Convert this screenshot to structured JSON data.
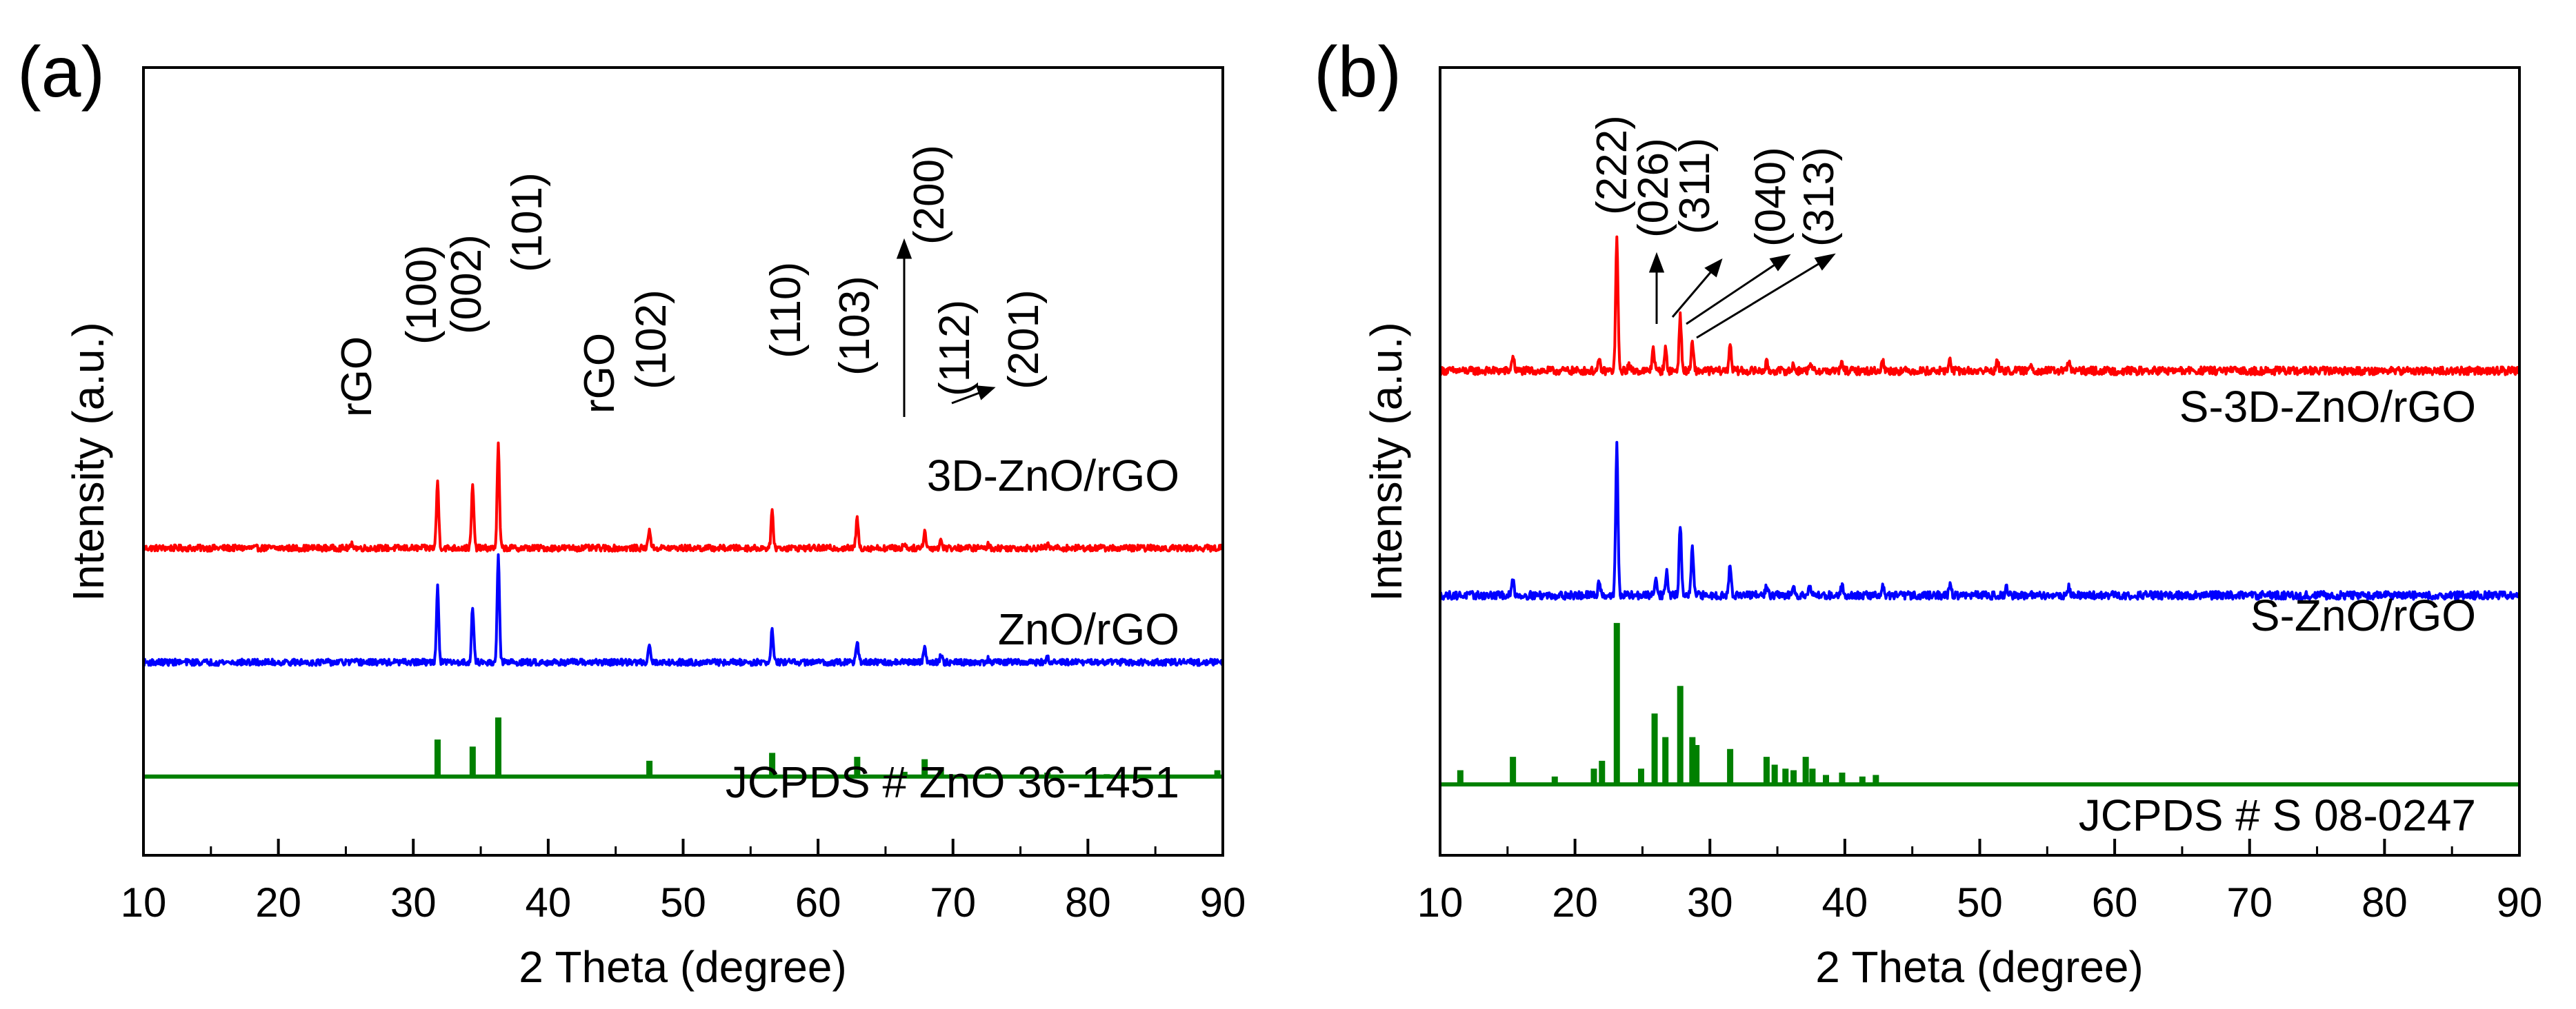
{
  "colors": {
    "red": "#ff0000",
    "blue": "#0000ff",
    "green": "#008000",
    "axis": "#000000"
  },
  "chart_data": [
    {
      "type": "line",
      "panel_label": "(a)",
      "xlabel": "2 Theta (degree)",
      "ylabel": "Intensity (a.u.)",
      "xlim": [
        10,
        90
      ],
      "xticks": [
        "10",
        "20",
        "30",
        "40",
        "50",
        "60",
        "70",
        "80",
        "90"
      ],
      "yticks_shown": false,
      "series": [
        {
          "name": "3D-ZnO/rGO",
          "color": "#ff0000",
          "style": "pattern",
          "baseline": 0.39,
          "noise": 0.004,
          "peaks": [
            [
              25.5,
              0.005
            ],
            [
              31.8,
              0.085
            ],
            [
              34.4,
              0.08
            ],
            [
              36.3,
              0.13
            ],
            [
              47.5,
              0.025
            ],
            [
              56.6,
              0.045
            ],
            [
              62.9,
              0.038
            ],
            [
              66.4,
              0.006
            ],
            [
              67.9,
              0.022
            ],
            [
              69.1,
              0.01
            ],
            [
              72.6,
              0.004
            ],
            [
              77.0,
              0.004
            ]
          ]
        },
        {
          "name": "ZnO/rGO",
          "color": "#0000ff",
          "style": "pattern",
          "baseline": 0.245,
          "noise": 0.004,
          "peaks": [
            [
              31.8,
              0.095
            ],
            [
              34.4,
              0.07
            ],
            [
              36.3,
              0.135
            ],
            [
              47.5,
              0.025
            ],
            [
              56.6,
              0.042
            ],
            [
              62.9,
              0.028
            ],
            [
              67.9,
              0.022
            ],
            [
              69.1,
              0.009
            ],
            [
              72.6,
              0.004
            ],
            [
              77.0,
              0.005
            ]
          ]
        },
        {
          "name": "JCPDS # ZnO 36-1451",
          "color": "#008000",
          "style": "sticks",
          "baseline": 0.1,
          "noise": 0,
          "peaks": [
            [
              31.8,
              0.047
            ],
            [
              34.4,
              0.038
            ],
            [
              36.3,
              0.075
            ],
            [
              47.5,
              0.02
            ],
            [
              56.6,
              0.03
            ],
            [
              62.9,
              0.025
            ],
            [
              66.4,
              0.006
            ],
            [
              67.9,
              0.022
            ],
            [
              69.1,
              0.012
            ],
            [
              72.6,
              0.004
            ],
            [
              77.0,
              0.005
            ],
            [
              81.4,
              0.003
            ],
            [
              89.6,
              0.008
            ]
          ]
        }
      ],
      "series_labels": [
        "3D-ZnO/rGO",
        "ZnO/rGO",
        "JCPDS # ZnO 36-1451"
      ],
      "annotations": [
        "rGO",
        "(100)",
        "(002)",
        "(101)",
        "rGO",
        "(102)",
        "(110)",
        "(103)",
        "(200)",
        "(112)",
        "(201)"
      ]
    },
    {
      "type": "line",
      "panel_label": "(b)",
      "xlabel": "2 Theta (degree)",
      "ylabel": "Intensity (a.u.)",
      "xlim": [
        10,
        90
      ],
      "xticks": [
        "10",
        "20",
        "30",
        "40",
        "50",
        "60",
        "70",
        "80",
        "90"
      ],
      "yticks_shown": false,
      "series": [
        {
          "name": "S-3D-ZnO/rGO",
          "color": "#ff0000",
          "style": "pattern",
          "baseline": 0.615,
          "noise": 0.005,
          "peaks": [
            [
              15.4,
              0.02
            ],
            [
              21.8,
              0.012
            ],
            [
              23.1,
              0.17
            ],
            [
              24.0,
              0.008
            ],
            [
              25.8,
              0.03
            ],
            [
              26.7,
              0.028
            ],
            [
              27.8,
              0.07
            ],
            [
              28.7,
              0.035
            ],
            [
              31.5,
              0.035
            ],
            [
              34.2,
              0.01
            ],
            [
              36.2,
              0.008
            ],
            [
              37.4,
              0.01
            ],
            [
              39.8,
              0.01
            ],
            [
              42.8,
              0.013
            ],
            [
              47.8,
              0.014
            ],
            [
              51.3,
              0.012
            ],
            [
              53.8,
              0.01
            ],
            [
              56.6,
              0.012
            ]
          ]
        },
        {
          "name": "S-ZnO/rGO",
          "color": "#0000ff",
          "style": "pattern",
          "baseline": 0.33,
          "noise": 0.005,
          "peaks": [
            [
              15.4,
              0.02
            ],
            [
              21.8,
              0.02
            ],
            [
              23.1,
              0.19
            ],
            [
              26.0,
              0.025
            ],
            [
              26.8,
              0.03
            ],
            [
              27.8,
              0.09
            ],
            [
              28.7,
              0.06
            ],
            [
              31.5,
              0.04
            ],
            [
              34.2,
              0.013
            ],
            [
              36.2,
              0.015
            ],
            [
              37.4,
              0.015
            ],
            [
              39.8,
              0.013
            ],
            [
              42.8,
              0.012
            ],
            [
              47.8,
              0.015
            ],
            [
              52.0,
              0.01
            ],
            [
              56.6,
              0.01
            ]
          ]
        },
        {
          "name": "JCPDS # S 08-0247",
          "color": "#008000",
          "style": "sticks",
          "baseline": 0.09,
          "noise": 0,
          "peaks": [
            [
              11.5,
              0.018
            ],
            [
              15.4,
              0.035
            ],
            [
              18.5,
              0.01
            ],
            [
              21.4,
              0.02
            ],
            [
              22.0,
              0.03
            ],
            [
              23.1,
              0.205
            ],
            [
              24.9,
              0.02
            ],
            [
              25.9,
              0.09
            ],
            [
              26.7,
              0.06
            ],
            [
              27.8,
              0.125
            ],
            [
              28.7,
              0.06
            ],
            [
              29.0,
              0.05
            ],
            [
              31.5,
              0.045
            ],
            [
              34.2,
              0.035
            ],
            [
              34.8,
              0.025
            ],
            [
              35.6,
              0.02
            ],
            [
              36.2,
              0.018
            ],
            [
              37.1,
              0.035
            ],
            [
              37.6,
              0.02
            ],
            [
              38.6,
              0.012
            ],
            [
              39.8,
              0.015
            ],
            [
              41.3,
              0.01
            ],
            [
              42.3,
              0.012
            ]
          ]
        }
      ],
      "series_labels": [
        "S-3D-ZnO/rGO",
        "S-ZnO/rGO",
        "JCPDS # S 08-0247"
      ],
      "annotations": [
        "(222)",
        "(026)",
        "(311)",
        "(040)",
        "(313)"
      ]
    }
  ]
}
